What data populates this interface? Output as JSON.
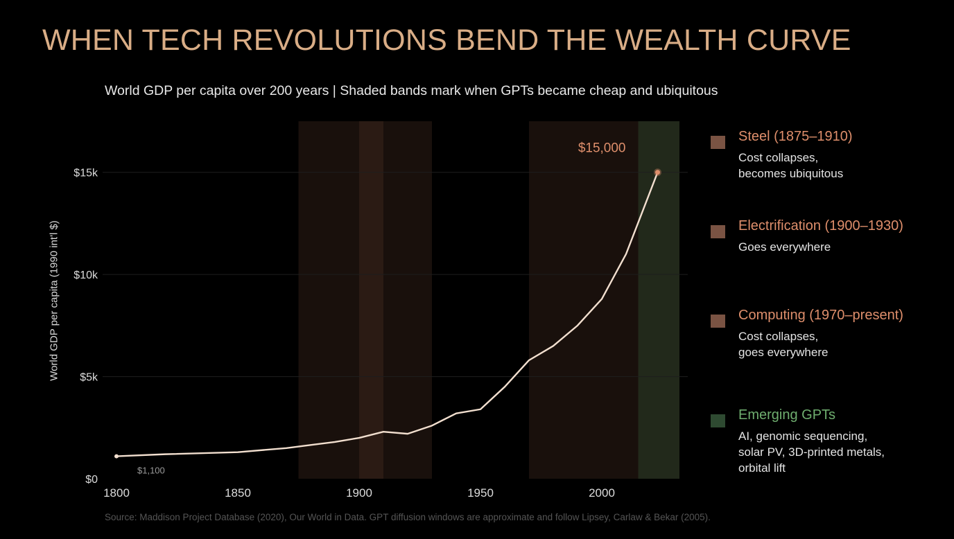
{
  "title": "WHEN TECH REVOLUTIONS BEND THE WEALTH CURVE",
  "subtitle": "World GDP per capita over 200 years  |  Shaded bands mark when GPTs became cheap and ubiquitous",
  "source": "Source: Maddison Project Database (2020), Our World in Data.  GPT diffusion windows are approximate and follow Lipsey, Carlaw & Bekar (2005).",
  "colors": {
    "background": "#000000",
    "title": "#d9ad86",
    "line": "#f2dfcf",
    "band_warm": "#5a3a2a",
    "band_green": "#2f4a2f",
    "legend_warm_text": "#df8f6c",
    "legend_green_text": "#6fae6f",
    "swatch_warm": "#7a5343",
    "swatch_green": "#2e4a31"
  },
  "legend": [
    {
      "title": "Steel  (1875–1910)",
      "desc": [
        "Cost collapses,",
        "becomes ubiquitous"
      ],
      "kind": "warm"
    },
    {
      "title": "Electrification  (1900–1930)",
      "desc": [
        "Goes everywhere"
      ],
      "kind": "warm"
    },
    {
      "title": "Computing  (1970–present)",
      "desc": [
        "Cost collapses,",
        "goes everywhere"
      ],
      "kind": "warm"
    },
    {
      "title": "Emerging GPTs",
      "desc": [
        "AI, genomic sequencing,",
        "solar PV, 3D-printed metals,",
        "orbital lift"
      ],
      "kind": "green"
    }
  ],
  "chart_data": {
    "type": "line",
    "title": "WHEN TECH REVOLUTIONS BEND THE WEALTH CURVE",
    "xlabel": "",
    "ylabel": "World GDP per capita (1990 int'l $)",
    "xlim": [
      1800,
      2032
    ],
    "ylim": [
      0,
      17500
    ],
    "x_ticks": [
      1800,
      1850,
      1900,
      1950,
      2000
    ],
    "x_tick_labels": [
      "1800",
      "1850",
      "1900",
      "1950",
      "2000"
    ],
    "y_ticks": [
      0,
      5000,
      10000,
      15000
    ],
    "y_tick_labels": [
      "$0",
      "$5k",
      "$10k",
      "$15k"
    ],
    "grid": "horizontal",
    "series": [
      {
        "x": [
          1800,
          1820,
          1850,
          1870,
          1880,
          1890,
          1900,
          1910,
          1920,
          1930,
          1940,
          1950,
          1960,
          1970,
          1980,
          1990,
          2000,
          2010,
          2023
        ],
        "y": [
          1100,
          1200,
          1300,
          1500,
          1650,
          1800,
          2000,
          2300,
          2200,
          2600,
          3200,
          3400,
          4500,
          5800,
          6500,
          7500,
          8800,
          11000,
          15000
        ]
      }
    ],
    "bands": [
      {
        "start": 1875,
        "end": 1910,
        "kind": "warm"
      },
      {
        "start": 1900,
        "end": 1930,
        "kind": "warm"
      },
      {
        "start": 1970,
        "end": 2032,
        "kind": "warm"
      },
      {
        "start": 2015,
        "end": 2032,
        "kind": "green"
      }
    ],
    "annotations": [
      {
        "text": "$1,100",
        "x": 1800,
        "y": 1100
      },
      {
        "text": "$15,000",
        "x": 2023,
        "y": 15000
      }
    ]
  }
}
